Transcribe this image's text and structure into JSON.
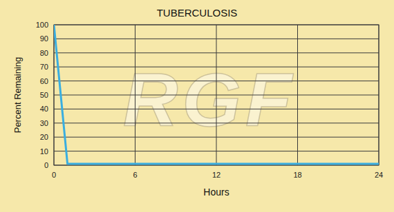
{
  "chart_data": {
    "type": "line",
    "title": "TUBERCULOSIS",
    "x_label": "Hours",
    "y_label": "Percent Remaining",
    "annotations": [
      "RGF"
    ],
    "x": [
      0,
      1,
      24
    ],
    "values": [
      100,
      1,
      1
    ],
    "color": "#3aaee0",
    "xlim": [
      0,
      24
    ],
    "xticks": [
      0,
      6,
      12,
      18,
      24
    ],
    "ylim": [
      0,
      100
    ],
    "yticks": [
      0,
      10,
      20,
      30,
      40,
      50,
      60,
      70,
      80,
      90,
      100
    ],
    "grid": true
  }
}
